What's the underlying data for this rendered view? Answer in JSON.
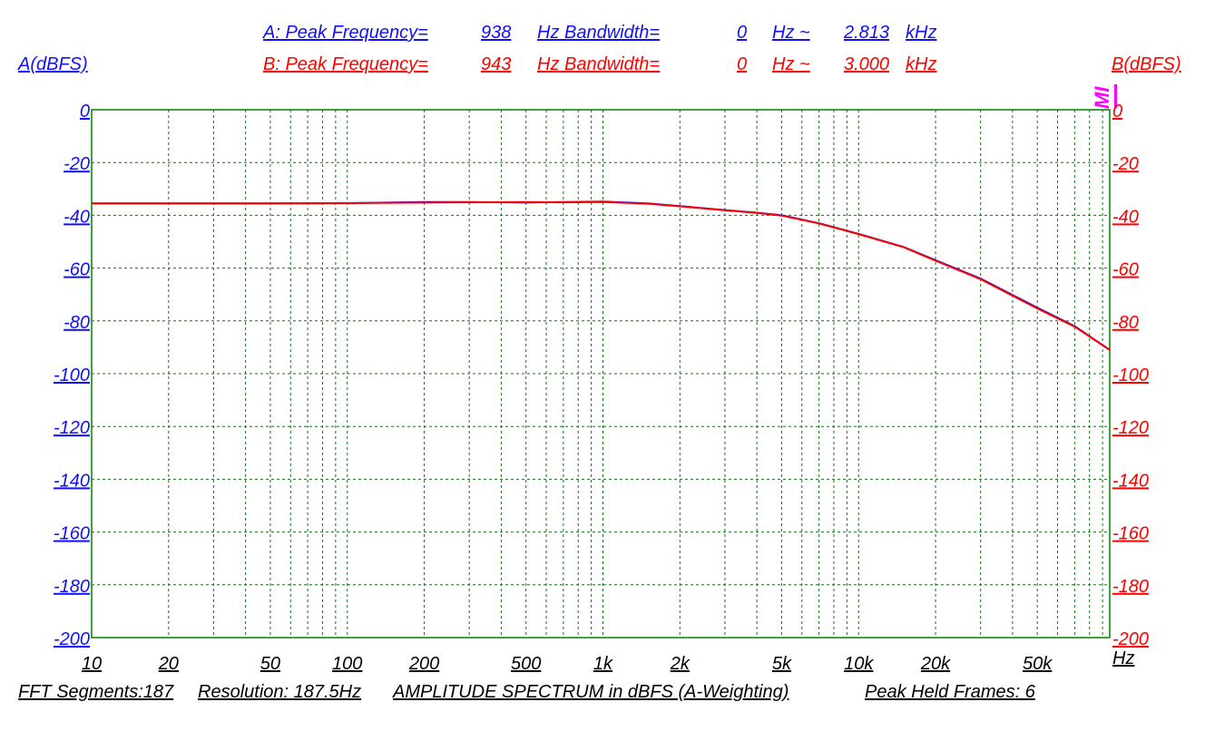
{
  "header": {
    "a": {
      "label": "A: Peak Frequency=",
      "peak": "938",
      "unit1": "Hz  Bandwidth=",
      "bw_low": "0",
      "unit2": "Hz ~",
      "bw_high": "2.813",
      "unit3": "kHz"
    },
    "b": {
      "label": "B: Peak Frequency=",
      "peak": "943",
      "unit1": "Hz  Bandwidth=",
      "bw_low": "0",
      "unit2": "Hz ~",
      "bw_high": "3.000",
      "unit3": "kHz"
    },
    "left_axis_title": "A(dBFS)",
    "right_axis_title": "B(dBFS)",
    "marker_text": "MI"
  },
  "footer": {
    "segments": "FFT Segments:187",
    "resolution": "Resolution: 187.5Hz",
    "title": "AMPLITUDE SPECTRUM in dBFS (A-Weighting)",
    "peak_frames": "Peak Held Frames: 6"
  },
  "colors": {
    "series_a": "#1010ff",
    "series_b": "#ff0000",
    "grid": "#008000",
    "marker": "#ff00ff"
  },
  "chart_data": {
    "type": "line",
    "x_scale": "log",
    "xlim": [
      10,
      96000
    ],
    "ylim": [
      -200,
      0
    ],
    "grid": true,
    "x_ticks": [
      "10",
      "20",
      "50",
      "100",
      "200",
      "500",
      "1k",
      "2k",
      "5k",
      "10k",
      "20k",
      "50k"
    ],
    "x_tick_values": [
      10,
      20,
      50,
      100,
      200,
      500,
      1000,
      2000,
      5000,
      10000,
      20000,
      50000
    ],
    "x_unit": "Hz",
    "y_ticks": [
      "0",
      "-20",
      "-40",
      "-60",
      "-80",
      "-100",
      "-120",
      "-140",
      "-160",
      "-180",
      "-200"
    ],
    "y_tick_values": [
      0,
      -20,
      -40,
      -60,
      -80,
      -100,
      -120,
      -140,
      -160,
      -180,
      -200
    ],
    "series": [
      {
        "name": "A",
        "x": [
          10,
          50,
          100,
          200,
          300,
          500,
          700,
          1000,
          1500,
          2000,
          3000,
          4000,
          5000,
          7000,
          10000,
          15000,
          20000,
          30000,
          50000,
          70000,
          96000
        ],
        "y": [
          -35.5,
          -35.5,
          -35.4,
          -35.0,
          -35.0,
          -35.2,
          -35.0,
          -34.8,
          -35.5,
          -36.5,
          -38.0,
          -39.0,
          -40.0,
          -43.0,
          -47.0,
          -52.0,
          -57.0,
          -64.0,
          -75.0,
          -82.0,
          -91.0
        ]
      },
      {
        "name": "B",
        "x": [
          10,
          50,
          100,
          200,
          300,
          500,
          700,
          1000,
          1500,
          2000,
          3000,
          4000,
          5000,
          7000,
          10000,
          15000,
          20000,
          30000,
          50000,
          70000,
          96000
        ],
        "y": [
          -35.5,
          -35.5,
          -35.4,
          -35.2,
          -35.1,
          -35.0,
          -35.1,
          -35.0,
          -35.6,
          -36.6,
          -38.1,
          -39.1,
          -40.1,
          -43.1,
          -47.1,
          -52.1,
          -57.2,
          -64.2,
          -75.3,
          -82.2,
          -91.0
        ]
      }
    ]
  }
}
